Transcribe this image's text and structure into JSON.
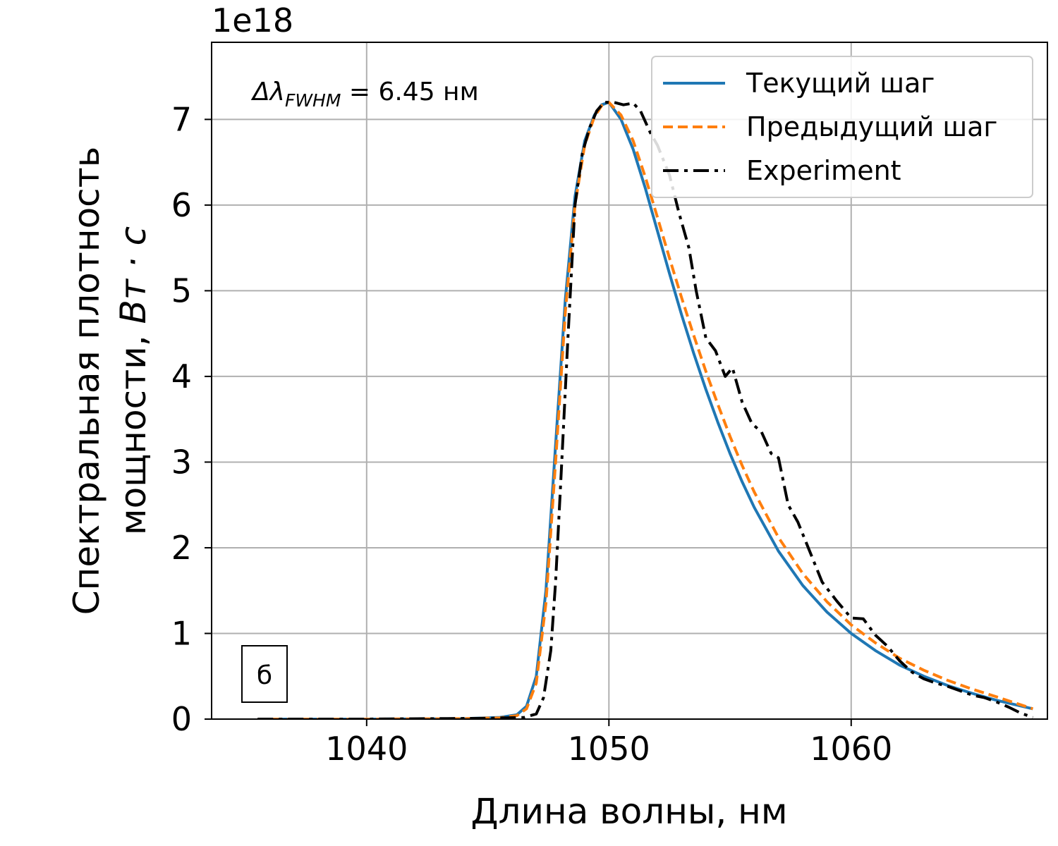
{
  "chart_data": {
    "type": "line",
    "xlabel": "Длина волны, нм",
    "ylabel_line1": "Спектральная плотность",
    "ylabel_line2": "мощности,",
    "ylabel_unit": "Вт · с",
    "offset_text": "1e18",
    "xlim": [
      1033.6,
      1068.1
    ],
    "ylim": [
      0,
      7.9
    ],
    "x_ticks": [
      1040,
      1050,
      1060
    ],
    "y_ticks": [
      0,
      1,
      2,
      3,
      4,
      5,
      6,
      7
    ],
    "grid": true,
    "legend_position": "top-right",
    "annotation": {
      "delta": "Δλ",
      "subscript": "FWHM",
      "value_text": " = 6.45 нм"
    },
    "panel_label": "б",
    "series": [
      {
        "name": "Текущий шаг",
        "color": "#1f77b4",
        "style": "solid",
        "x": [
          1035.5,
          1040,
          1044,
          1045.5,
          1046.2,
          1046.6,
          1047.0,
          1047.4,
          1047.8,
          1048.2,
          1048.6,
          1049.0,
          1049.4,
          1049.7,
          1050.0,
          1050.5,
          1051.0,
          1051.5,
          1052.0,
          1052.5,
          1053.0,
          1053.5,
          1054.0,
          1054.5,
          1055.0,
          1055.5,
          1056.0,
          1057.0,
          1058.0,
          1059.0,
          1060.0,
          1061.0,
          1062.0,
          1063.0,
          1064.0,
          1065.0,
          1066.0,
          1067.5
        ],
        "y": [
          0,
          0,
          0.005,
          0.02,
          0.05,
          0.15,
          0.5,
          1.5,
          3.2,
          4.9,
          6.1,
          6.75,
          7.05,
          7.17,
          7.2,
          7.0,
          6.65,
          6.2,
          5.7,
          5.2,
          4.72,
          4.27,
          3.85,
          3.46,
          3.1,
          2.77,
          2.47,
          1.96,
          1.56,
          1.25,
          1.0,
          0.8,
          0.63,
          0.5,
          0.39,
          0.3,
          0.22,
          0.12
        ]
      },
      {
        "name": "Предыдущий шаг",
        "color": "#ff7f0e",
        "style": "dashed",
        "x": [
          1035.5,
          1040,
          1044,
          1045.5,
          1046.2,
          1046.6,
          1047.0,
          1047.4,
          1047.8,
          1048.2,
          1048.6,
          1049.0,
          1049.4,
          1049.7,
          1050.0,
          1050.5,
          1051.0,
          1051.5,
          1052.0,
          1052.5,
          1053.0,
          1053.5,
          1054.0,
          1054.5,
          1055.0,
          1055.5,
          1056.0,
          1057.0,
          1058.0,
          1059.0,
          1060.0,
          1061.0,
          1062.0,
          1063.0,
          1064.0,
          1065.0,
          1066.0,
          1067.5
        ],
        "y": [
          0,
          0,
          0.005,
          0.015,
          0.04,
          0.12,
          0.42,
          1.35,
          3.0,
          4.75,
          6.0,
          6.7,
          7.03,
          7.16,
          7.2,
          7.05,
          6.75,
          6.33,
          5.86,
          5.38,
          4.92,
          4.48,
          4.06,
          3.67,
          3.3,
          2.96,
          2.65,
          2.12,
          1.7,
          1.37,
          1.1,
          0.89,
          0.71,
          0.57,
          0.45,
          0.35,
          0.26,
          0.12
        ]
      },
      {
        "name": "Experiment",
        "color": "#000000",
        "style": "dashdot",
        "x": [
          1035.5,
          1040,
          1045.0,
          1046.5,
          1047.0,
          1047.3,
          1047.6,
          1047.8,
          1048.0,
          1048.3,
          1048.6,
          1048.9,
          1049.2,
          1049.5,
          1049.8,
          1050.2,
          1050.6,
          1051.0,
          1051.3,
          1051.7,
          1052.0,
          1052.5,
          1052.9,
          1053.3,
          1053.6,
          1054.0,
          1054.4,
          1054.8,
          1055.1,
          1055.5,
          1055.9,
          1056.3,
          1056.7,
          1057.0,
          1057.4,
          1057.8,
          1058.3,
          1058.8,
          1059.4,
          1060.0,
          1060.5,
          1061.0,
          1061.5,
          1062.0,
          1062.5,
          1063.0,
          1063.5,
          1064.0,
          1064.5,
          1065.0,
          1065.5,
          1066.0,
          1066.5,
          1067.0,
          1067.5
        ],
        "y": [
          0,
          0,
          0.01,
          0.02,
          0.06,
          0.25,
          0.8,
          1.6,
          2.7,
          4.4,
          6.0,
          6.6,
          6.9,
          7.1,
          7.2,
          7.2,
          7.17,
          7.19,
          7.1,
          6.85,
          6.7,
          6.35,
          5.9,
          5.5,
          5.0,
          4.45,
          4.3,
          4.0,
          4.1,
          3.7,
          3.45,
          3.35,
          3.1,
          3.05,
          2.5,
          2.3,
          1.95,
          1.6,
          1.38,
          1.18,
          1.17,
          0.98,
          0.85,
          0.68,
          0.55,
          0.47,
          0.42,
          0.38,
          0.33,
          0.28,
          0.25,
          0.2,
          0.14,
          0.07,
          0.02
        ]
      }
    ]
  }
}
